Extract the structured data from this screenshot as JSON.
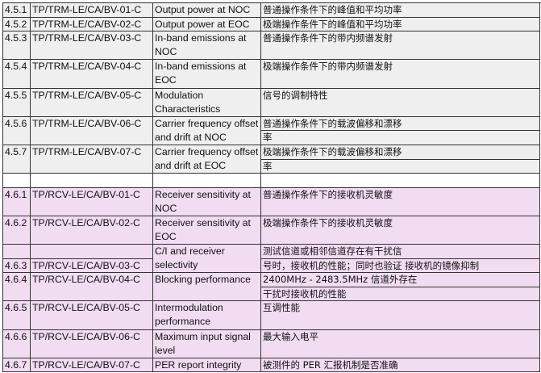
{
  "colors": {
    "trm_bg": "#efefef",
    "rcv_bg": "#f2dcf2",
    "border": "#333333"
  },
  "rows": [
    {
      "section": "trm",
      "lines": 1,
      "id": "4.5.1",
      "code": "TP/TRM-LE/CA/BV-01-C",
      "name": "Output power at NOC",
      "desc": "普通操作条件下的峰值和平均功率"
    },
    {
      "section": "trm",
      "lines": 1,
      "id": "4.5.2",
      "code": "TP/TRM-LE/CA/BV-02-C",
      "name": "Output power at EOC",
      "desc": "极端操作条件下的峰值和平均功率"
    },
    {
      "section": "trm",
      "lines": 2,
      "id": "4.5.3",
      "code": "TP/TRM-LE/CA/BV-03-C",
      "name": "In-band emissions at NOC",
      "desc": "普通操作条件下的带内频谱发射"
    },
    {
      "section": "trm",
      "lines": 2,
      "id": "4.5.4",
      "code": "TP/TRM-LE/CA/BV-04-C",
      "name": "In-band emissions at EOC",
      "desc": "极端操作条件下的带内频谱发射"
    },
    {
      "section": "trm",
      "lines": 2,
      "id": "4.5.5",
      "code": "TP/TRM-LE/CA/BV-05-C",
      "name": "Modulation Characteristics",
      "desc": "信号的调制特性"
    },
    {
      "section": "trm",
      "lines": 2,
      "id": "4.5.6",
      "code": "TP/TRM-LE/CA/BV-06-C",
      "name": "Carrier frequency offset and drift at NOC",
      "desc": [
        "普通操作条件下的载波偏移和漂移",
        "率"
      ]
    },
    {
      "section": "trm",
      "lines": 2,
      "id": "4.5.7",
      "code": "TP/TRM-LE/CA/BV-07-C",
      "name": "Carrier frequency offset and drift at EOC",
      "desc": [
        "极端操作条件下的载波偏移和漂移",
        "率"
      ]
    },
    {
      "section": "blank",
      "lines": 1,
      "id": "",
      "code": "",
      "name": "",
      "desc": ""
    },
    {
      "section": "rcv",
      "lines": 2,
      "id": "4.6.1",
      "code": "TP/RCV-LE/CA/BV-01-C",
      "name": "Receiver sensitivity at NOC",
      "desc": "普通操作条件下的接收机灵敏度"
    },
    {
      "section": "rcv",
      "lines": 2,
      "id": "4.6.2",
      "code": "TP/RCV-LE/CA/BV-02-C",
      "name": "Receiver sensitivity at EOC",
      "desc": "极端操作条件下的接收机灵敏度"
    },
    {
      "section": "rcv",
      "lines": 2,
      "id": [
        "",
        "4.6.3"
      ],
      "code": [
        "",
        "TP/RCV-LE/CA/BV-03-C"
      ],
      "name": "C/I and receiver selectivity",
      "desc": [
        "测试信道或相邻信道存在有干扰信",
        "号时，接收机的性能；同时也验证 接收机的镜像抑制"
      ]
    },
    {
      "section": "rcv",
      "lines": 2,
      "id": "4.6.4",
      "code": "TP/RCV-LE/CA/BV-04-C",
      "name": "Blocking performance",
      "desc": [
        "2400MHz - 2483.5MHz 信道外存在",
        "干扰时接收机的性能"
      ]
    },
    {
      "section": "rcv",
      "lines": 2,
      "id": "4.6.5",
      "code": "TP/RCV-LE/CA/BV-05-C",
      "name": "Intermodulation performance",
      "desc": "互调性能"
    },
    {
      "section": "rcv",
      "lines": 2,
      "id": "4.6.6",
      "code": "TP/RCV-LE/CA/BV-06-C",
      "name": "Maximum input signal level",
      "desc": "最大输入电平"
    },
    {
      "section": "rcv",
      "lines": 1,
      "id": "4.6.7",
      "code": "TP/RCV-LE/CA/BV-07-C",
      "name": "PER report integrity",
      "desc": "被测件的 PER 汇报机制是否准确"
    }
  ]
}
